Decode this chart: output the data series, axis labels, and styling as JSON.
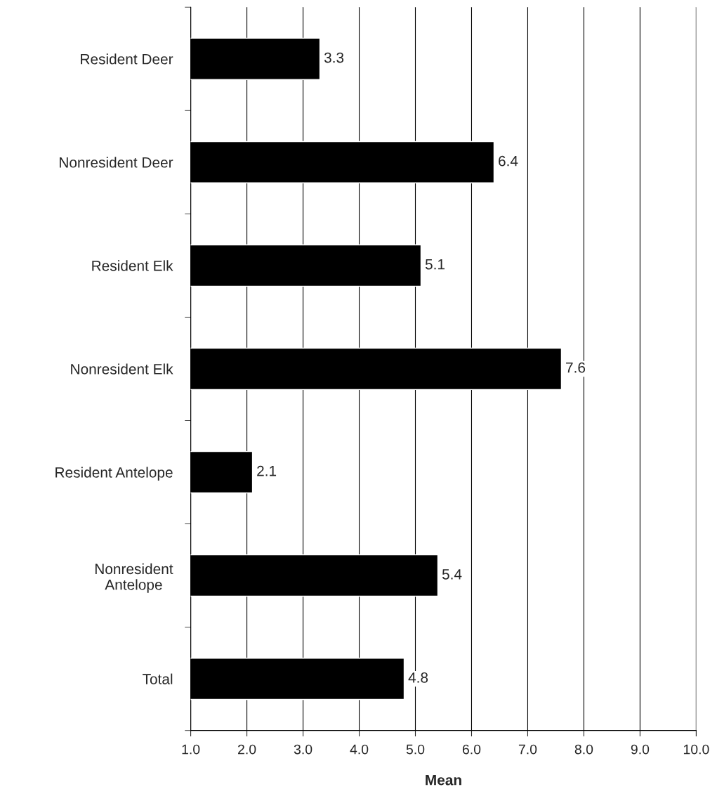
{
  "chart_data": {
    "type": "bar",
    "orientation": "horizontal",
    "xlabel": "Mean",
    "categories": [
      "Resident Deer",
      "Nonresident Deer",
      "Resident Elk",
      "Nonresident Elk",
      "Resident Antelope",
      "Nonresident\nAntelope",
      "Total"
    ],
    "values": [
      3.3,
      6.4,
      5.1,
      7.6,
      2.1,
      5.4,
      4.8
    ],
    "color": "#000000",
    "xlim": [
      1,
      10
    ],
    "xticks": [
      {
        "value": 1,
        "label": "1.0"
      },
      {
        "value": 2,
        "label": "2.0"
      },
      {
        "value": 3,
        "label": "3.0"
      },
      {
        "value": 4,
        "label": "4.0"
      },
      {
        "value": 5,
        "label": "5.0"
      },
      {
        "value": 6,
        "label": "6.0"
      },
      {
        "value": 7,
        "label": "7.0"
      },
      {
        "value": 8,
        "label": "8.0"
      },
      {
        "value": 9,
        "label": "9.0"
      },
      {
        "value": 10,
        "label": "10.0"
      }
    ],
    "grid": "x",
    "data_labels": true,
    "legend": false
  }
}
